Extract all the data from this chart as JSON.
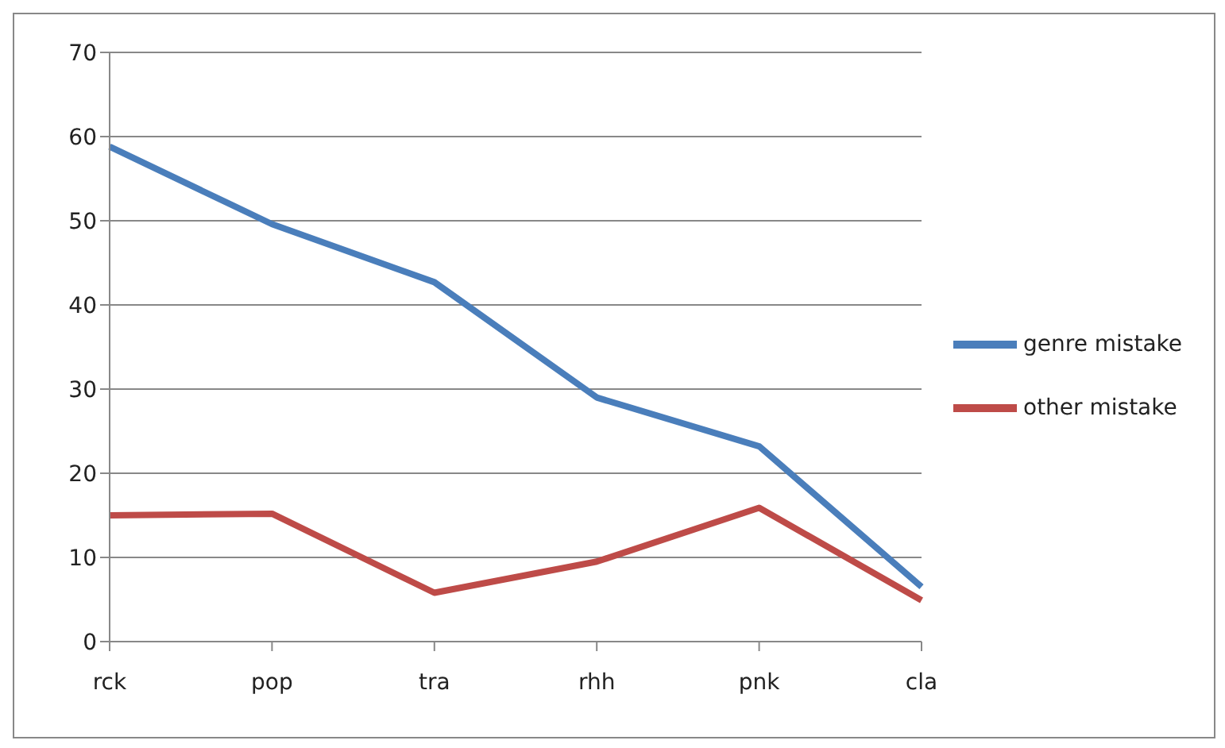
{
  "chart_data": {
    "type": "line",
    "categories": [
      "rck",
      "pop",
      "tra",
      "rhh",
      "pnk",
      "cla"
    ],
    "series": [
      {
        "name": "genre mistake",
        "color": "#4a7ebb",
        "values": [
          58.8,
          49.6,
          42.7,
          29.0,
          23.2,
          6.5
        ]
      },
      {
        "name": "other mistake",
        "color": "#be4b48",
        "values": [
          15.0,
          15.2,
          5.8,
          9.5,
          15.9,
          4.9
        ]
      }
    ],
    "ylim": [
      0,
      70
    ],
    "yticks": [
      0,
      10,
      20,
      30,
      40,
      50,
      60,
      70
    ],
    "grid": "y",
    "legend": "right",
    "marker": "none",
    "line_style": "solid"
  }
}
